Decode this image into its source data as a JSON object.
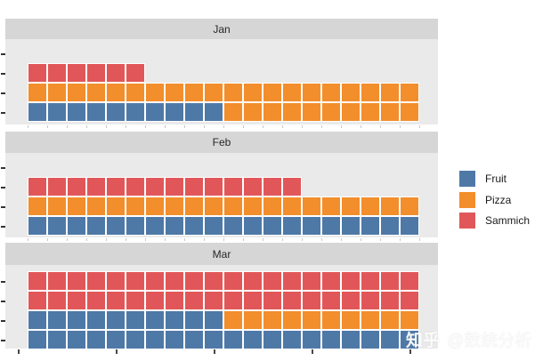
{
  "colors": {
    "fruit_blue": "#4e79a7",
    "pizza_orange": "#f28e2b",
    "sammich_red": "#e15759",
    "strip_bg": "#d6d6d6",
    "panel_bg": "#eaeaea"
  },
  "palette": {
    "F": "#4e79a7",
    "P": "#f28e2b",
    "S": "#e15759"
  },
  "code_names": {
    "F": "fruit",
    "P": "pizza",
    "S": "sammich"
  },
  "panels": [
    {
      "title": "Jan",
      "grid": [
        "....................",
        "SSSSSS..............",
        "PPPPPPPPPPPPPPPPPPPP",
        "FFFFFFFFFFPPPPPPPPPP"
      ]
    },
    {
      "title": "Feb",
      "grid": [
        "....................",
        "SSSSSSSSSSSSSS......",
        "PPPPPPPPPPPPPPPPPPPP",
        "FFFFFFFFFFFFFFFFFFFF"
      ]
    },
    {
      "title": "Mar",
      "grid": [
        "SSSSSSSSSSSSSSSSSSSS",
        "SSSSSSSSSSSSSSSSSSSS",
        "FFFFFFFFFFPPPPPPPPPP",
        "FFFFFFFFFFFFFFFFFFFF"
      ]
    }
  ],
  "legend": {
    "items": [
      {
        "label": "Fruit",
        "color": "#4e79a7"
      },
      {
        "label": "Pizza",
        "color": "#f28e2b"
      },
      {
        "label": "Sammich",
        "color": "#e15759"
      }
    ]
  },
  "watermark": {
    "brand": "知乎",
    "handle": "@数统分析"
  },
  "chart_data": {
    "type": "waffle",
    "description": "Three stacked waffle (square pictogram) charts faceted by month; 1 square = 1 unit, filled row by row from bottom-left",
    "facets": [
      "Jan",
      "Feb",
      "Mar"
    ],
    "columns": 20,
    "rows_per_facet": [
      3,
      3,
      4
    ],
    "series": [
      {
        "name": "Fruit",
        "color": "#4e79a7",
        "values": [
          10,
          20,
          30
        ]
      },
      {
        "name": "Pizza",
        "color": "#f28e2b",
        "values": [
          30,
          20,
          10
        ]
      },
      {
        "name": "Sammich",
        "color": "#e15759",
        "values": [
          6,
          14,
          40
        ]
      }
    ],
    "totals_per_facet": [
      46,
      54,
      80
    ],
    "title": "",
    "xlabel": "",
    "ylabel": "",
    "legend_position": "right",
    "grid": "off",
    "axis_tick_labels": "none (unlabeled tick marks on left and bottom axes)"
  }
}
